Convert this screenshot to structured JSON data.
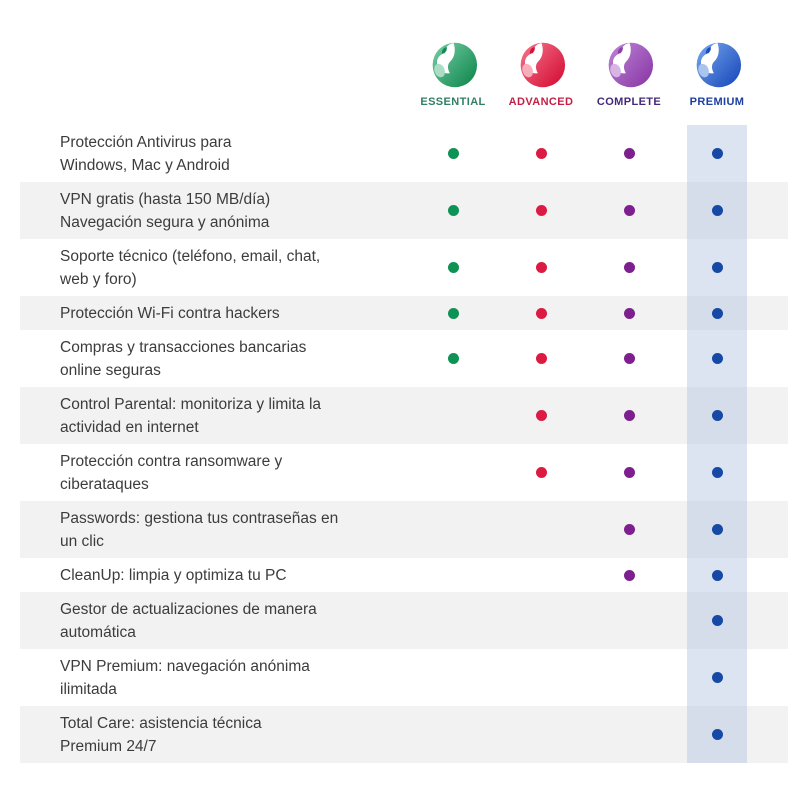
{
  "plans": [
    {
      "name": "ESSENTIAL",
      "label_color": "#2f8067",
      "dot_color": "#0e9355",
      "logo_light": "#6ec79c",
      "logo_dark": "#148a52",
      "logo_tint": "#aaddc3"
    },
    {
      "name": "ADVANCED",
      "label_color": "#c42045",
      "dot_color": "#dc1b42",
      "logo_light": "#f26b84",
      "logo_dark": "#d61238",
      "logo_tint": "#f6aeba"
    },
    {
      "name": "COMPLETE",
      "label_color": "#44297a",
      "dot_color": "#7e1f90",
      "logo_light": "#b87ed2",
      "logo_dark": "#8c3ba8",
      "logo_tint": "#d9b5e6"
    },
    {
      "name": "PREMIUM",
      "label_color": "#1c3fa2",
      "dot_color": "#1549a5",
      "logo_light": "#6f9fe8",
      "logo_dark": "#1d4dbd",
      "logo_tint": "#aac4ee"
    }
  ],
  "highlight": {
    "plan": "PREMIUM",
    "color": "rgba(177,195,224,0.45)"
  },
  "row_stripe_color": "#f2f2f3",
  "features": [
    {
      "lines": [
        "Protección Antivirus para",
        "Windows, Mac y Android"
      ],
      "included": [
        true,
        true,
        true,
        true
      ]
    },
    {
      "lines": [
        "VPN gratis (hasta 150 MB/día)",
        "Navegación segura y anónima"
      ],
      "included": [
        true,
        true,
        true,
        true
      ]
    },
    {
      "lines": [
        "Soporte técnico (teléfono, email, chat,",
        "web y foro)"
      ],
      "included": [
        true,
        true,
        true,
        true
      ]
    },
    {
      "lines": [
        "Protección Wi-Fi contra hackers"
      ],
      "included": [
        true,
        true,
        true,
        true
      ]
    },
    {
      "lines": [
        "Compras y transacciones bancarias",
        "online seguras"
      ],
      "included": [
        true,
        true,
        true,
        true
      ]
    },
    {
      "lines": [
        "Control Parental: monitoriza y limita la",
        "actividad en internet"
      ],
      "included": [
        false,
        true,
        true,
        true
      ]
    },
    {
      "lines": [
        "Protección contra ransomware y",
        "ciberataques"
      ],
      "included": [
        false,
        true,
        true,
        true
      ]
    },
    {
      "lines": [
        "Passwords: gestiona tus contraseñas en",
        "un clic"
      ],
      "included": [
        false,
        false,
        true,
        true
      ]
    },
    {
      "lines": [
        "CleanUp: limpia y optimiza tu PC"
      ],
      "included": [
        false,
        false,
        true,
        true
      ]
    },
    {
      "lines": [
        "Gestor de actualizaciones de manera",
        "automática"
      ],
      "included": [
        false,
        false,
        false,
        true
      ]
    },
    {
      "lines": [
        "VPN Premium: navegación anónima",
        "ilimitada"
      ],
      "included": [
        false,
        false,
        false,
        true
      ]
    },
    {
      "lines": [
        "Total Care: asistencia técnica",
        "Premium 24/7"
      ],
      "included": [
        false,
        false,
        false,
        true
      ]
    }
  ]
}
